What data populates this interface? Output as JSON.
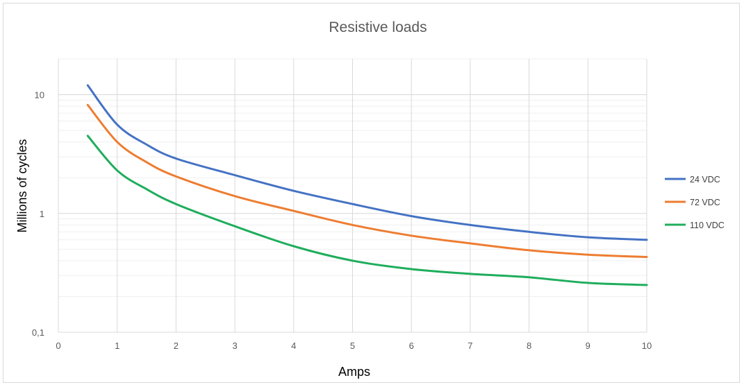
{
  "chart_data": {
    "type": "line",
    "title": "Resistive loads",
    "xlabel": "Amps",
    "ylabel": "Millions of cycles",
    "xlim": [
      0,
      10
    ],
    "ylim": [
      0.1,
      20
    ],
    "yscale": "log",
    "x_ticks": [
      "0",
      "1",
      "2",
      "3",
      "4",
      "5",
      "6",
      "7",
      "8",
      "9",
      "10"
    ],
    "y_ticks": [
      {
        "value": 0.1,
        "label": "0,1"
      },
      {
        "value": 1,
        "label": "1"
      },
      {
        "value": 10,
        "label": "10"
      }
    ],
    "grid": true,
    "legend": "right",
    "x": [
      0.5,
      1,
      1.5,
      2,
      3,
      4,
      5,
      6,
      7,
      8,
      9,
      10
    ],
    "series": [
      {
        "name": "24 VDC",
        "color": "#4472c4",
        "values": [
          12,
          5.6,
          3.8,
          2.9,
          2.1,
          1.55,
          1.2,
          0.95,
          0.8,
          0.7,
          0.63,
          0.6
        ]
      },
      {
        "name": "72 VDC",
        "color": "#ed7d31",
        "values": [
          8.2,
          4.0,
          2.7,
          2.05,
          1.4,
          1.05,
          0.8,
          0.65,
          0.56,
          0.49,
          0.45,
          0.43
        ]
      },
      {
        "name": "110 VDC",
        "color": "#1fad5c",
        "values": [
          4.5,
          2.3,
          1.6,
          1.2,
          0.78,
          0.53,
          0.4,
          0.34,
          0.31,
          0.29,
          0.26,
          0.25
        ]
      }
    ]
  }
}
